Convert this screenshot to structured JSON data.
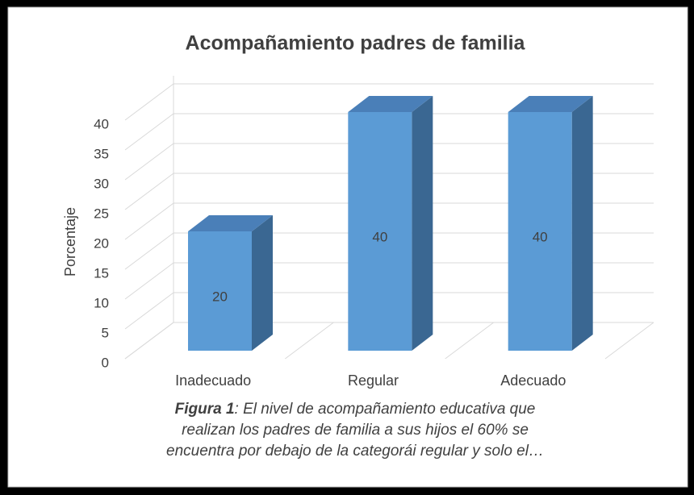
{
  "chart_data": {
    "type": "bar3d",
    "title": "Acompañamiento padres de familia",
    "y_label": "Porcentaje",
    "categories": [
      "Inadecuado",
      "Regular",
      "Adecuado"
    ],
    "values": [
      20,
      40,
      40
    ],
    "color": "#5b9bd5",
    "ylim": [
      0,
      40
    ],
    "yticks": [
      0,
      5,
      10,
      15,
      20,
      25,
      30,
      35,
      40
    ],
    "grid": true
  },
  "caption": {
    "label": "Figura 1",
    "lines": [
      ": El nivel de acompañamiento educativa que",
      "realizan los padres de familia a sus hijos el 60% se",
      "encuentra por debajo de la categorái regular y solo el…"
    ]
  }
}
